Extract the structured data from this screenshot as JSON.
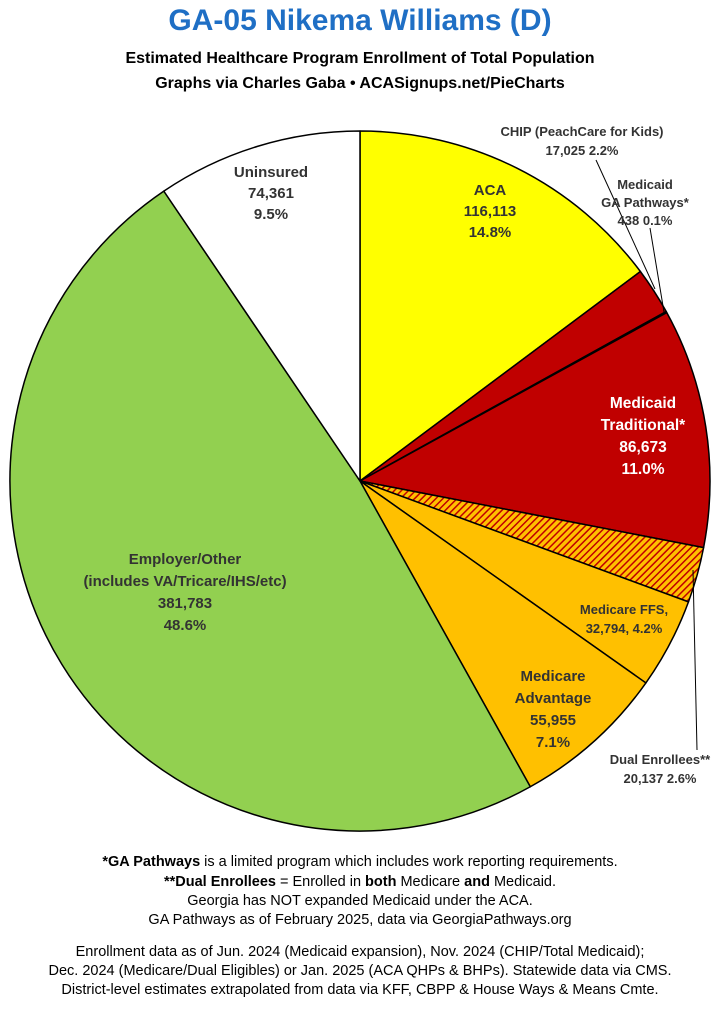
{
  "header": {
    "title": "GA-05 Nikema Williams (D)",
    "subtitle_1": "Estimated Healthcare Program Enrollment of Total Population",
    "subtitle_2": "Graphs via Charles Gaba   •   ACASignups.net/PieCharts"
  },
  "colors": {
    "title": "#1f6fc5",
    "aca": "#ffff00",
    "chip": "#c00000",
    "pathways": "#c00000",
    "medicaid": "#c00000",
    "dual": "#c55a11",
    "ffs": "#ffc000",
    "advantage": "#ffc000",
    "employer": "#92d050",
    "uninsured": "#ffffff"
  },
  "chart_data": {
    "type": "pie",
    "slices": [
      {
        "key": "aca",
        "lines": [
          "ACA",
          "116,113",
          "14.8%"
        ],
        "value": 116113,
        "percent": 14.8
      },
      {
        "key": "chip",
        "lines": [
          "CHIP (PeachCare for Kids)",
          "17,025 2.2%"
        ],
        "value": 17025,
        "percent": 2.2
      },
      {
        "key": "pathways",
        "lines": [
          "Medicaid",
          "GA Pathways*",
          "438 0.1%"
        ],
        "value": 438,
        "percent": 0.1
      },
      {
        "key": "medicaid",
        "lines": [
          "Medicaid",
          "Traditional*",
          "86,673",
          "11.0%"
        ],
        "value": 86673,
        "percent": 11.0
      },
      {
        "key": "dual",
        "lines": [
          "Dual Enrollees**",
          "20,137 2.6%"
        ],
        "value": 20137,
        "percent": 2.6
      },
      {
        "key": "ffs",
        "lines": [
          "Medicare FFS,",
          "32,794, 4.2%"
        ],
        "value": 32794,
        "percent": 4.2
      },
      {
        "key": "advantage",
        "lines": [
          "Medicare",
          "Advantage",
          "55,955",
          "7.1%"
        ],
        "value": 55955,
        "percent": 7.1
      },
      {
        "key": "employer",
        "lines": [
          "Employer/Other",
          "(includes VA/Tricare/IHS/etc)",
          "381,783",
          "48.6%"
        ],
        "value": 381783,
        "percent": 48.6
      },
      {
        "key": "uninsured",
        "lines": [
          "Uninsured",
          "74,361",
          "9.5%"
        ],
        "value": 74361,
        "percent": 9.5
      }
    ]
  },
  "notes": {
    "line1_bold": "*GA Pathways",
    "line1_rest": " is a limited program which includes work reporting requirements.",
    "line2_a": "**Dual Enrollees",
    "line2_b": " = Enrolled in ",
    "line2_c": "both",
    "line2_d": " Medicare ",
    "line2_e": "and",
    "line2_f": " Medicaid.",
    "line3": "Georgia has NOT expanded Medicaid under the ACA.",
    "line4": "GA Pathways as of February 2025, data via GeorgiaPathways.org",
    "line5": "Enrollment data as of Jun. 2024 (Medicaid expansion), Nov. 2024 (CHIP/Total Medicaid);",
    "line6": "Dec. 2024 (Medicare/Dual Eligibles) or Jan. 2025 (ACA QHPs & BHPs). Statewide data via CMS.",
    "line7": "District-level estimates extrapolated from data via KFF, CBPP & House Ways & Means Cmte."
  }
}
